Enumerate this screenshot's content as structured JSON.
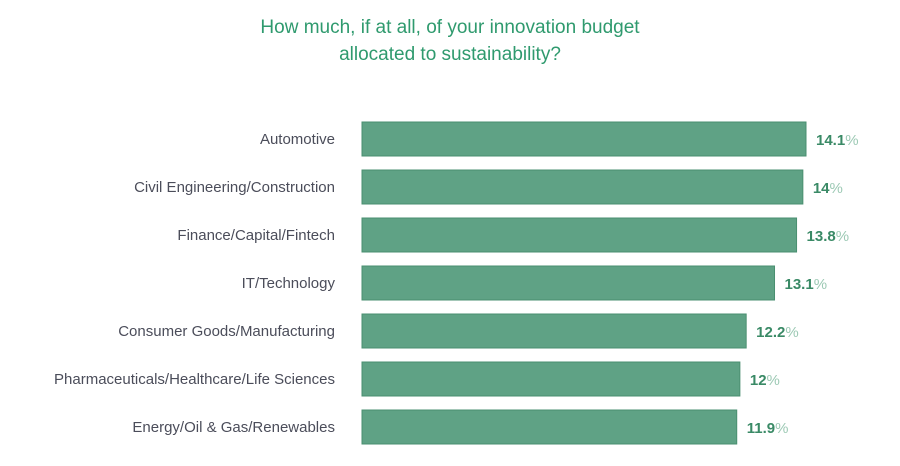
{
  "chart_data": {
    "type": "bar",
    "orientation": "horizontal",
    "title_lines": [
      "How much, if at all, of your innovation budget",
      "allocated to sustainability?"
    ],
    "categories": [
      "Automotive",
      "Civil Engineering/Construction",
      "Finance/Capital/Fintech",
      "IT/Technology",
      "Consumer Goods/Manufacturing",
      "Pharmaceuticals/Healthcare/Life Sciences",
      "Energy/Oil & Gas/Renewables"
    ],
    "values": [
      14.1,
      14,
      13.8,
      13.1,
      12.2,
      12,
      11.9
    ],
    "value_labels": [
      "14.1",
      "14",
      "13.8",
      "13.1",
      "12.2",
      "12",
      "11.9"
    ],
    "unit": "%",
    "xlabel": "",
    "ylabel": "",
    "xlim": [
      0,
      14.1
    ],
    "grid": false,
    "colors": {
      "bar": "#5fa285",
      "bar_border": "#4a8f70",
      "value": "#3a8a66",
      "unit": "#9cc9b4",
      "category": "#4b4d5a",
      "title": "#2f9a6e"
    }
  }
}
